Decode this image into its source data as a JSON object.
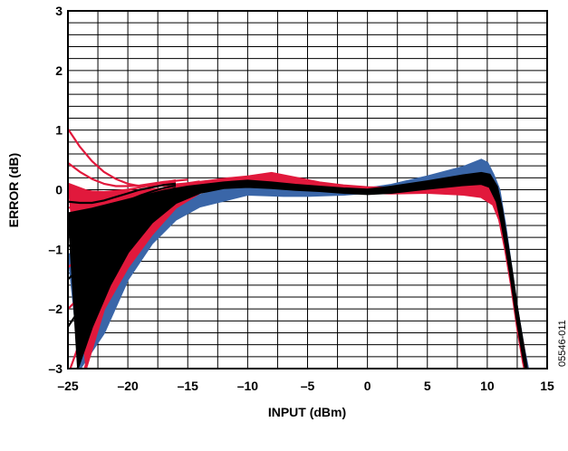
{
  "chart_data": {
    "type": "line",
    "title": "",
    "xlabel": "INPUT (dBm)",
    "ylabel": "ERROR (dB)",
    "xlim": [
      -25,
      15
    ],
    "ylim": [
      -3,
      3
    ],
    "x_ticks": [
      -25,
      -20,
      -15,
      -10,
      -5,
      0,
      5,
      10,
      15
    ],
    "x_tick_labels": [
      "–25",
      "–20",
      "–15",
      "–10",
      "–5",
      "0",
      "5",
      "10",
      "15"
    ],
    "y_ticks": [
      -3,
      -2,
      -1,
      0,
      1,
      2,
      3
    ],
    "y_tick_labels": [
      "–3",
      "–2",
      "–1",
      "0",
      "1",
      "2",
      "3"
    ],
    "grid": {
      "x_minor_step": 2.5,
      "y_minor_step": 0.2
    },
    "legend": "none",
    "figure_id": "05546-011",
    "series_groups": [
      {
        "color": "#3a66a8",
        "band_top": [
          [
            -25,
            -1.1
          ],
          [
            -22,
            -0.75
          ],
          [
            -20,
            -0.5
          ],
          [
            -18,
            -0.3
          ],
          [
            -15,
            -0.15
          ],
          [
            -12,
            0.02
          ],
          [
            -10,
            0.08
          ],
          [
            -7,
            0.05
          ],
          [
            -5,
            0.03
          ],
          [
            -2,
            0.02
          ],
          [
            0,
            0.02
          ],
          [
            2,
            0.08
          ],
          [
            5,
            0.22
          ],
          [
            8,
            0.38
          ],
          [
            9.5,
            0.5
          ],
          [
            10,
            0.45
          ],
          [
            10.5,
            0.25
          ],
          [
            11,
            0.0
          ],
          [
            11.5,
            -0.6
          ],
          [
            12,
            -1.3
          ],
          [
            12.5,
            -2.0
          ],
          [
            13,
            -2.6
          ],
          [
            13.4,
            -3.0
          ]
        ],
        "band_bottom": [
          [
            -24,
            -3.0
          ],
          [
            -22,
            -2.4
          ],
          [
            -20,
            -1.5
          ],
          [
            -18,
            -0.9
          ],
          [
            -16,
            -0.5
          ],
          [
            -14,
            -0.28
          ],
          [
            -12,
            -0.18
          ],
          [
            -10,
            -0.08
          ],
          [
            -7,
            -0.1
          ],
          [
            -5,
            -0.1
          ],
          [
            -2,
            -0.08
          ],
          [
            0,
            -0.05
          ],
          [
            2,
            0.0
          ],
          [
            5,
            0.05
          ],
          [
            8,
            0.08
          ],
          [
            9.5,
            0.08
          ],
          [
            10.5,
            -0.05
          ],
          [
            11,
            -0.3
          ],
          [
            11.5,
            -0.8
          ],
          [
            12,
            -1.5
          ],
          [
            12.5,
            -2.2
          ],
          [
            13,
            -2.8
          ],
          [
            13.1,
            -3.0
          ]
        ]
      },
      {
        "color": "#e1193c",
        "band_top": [
          [
            -25,
            0.1
          ],
          [
            -23,
            -0.05
          ],
          [
            -21,
            -0.05
          ],
          [
            -19,
            -0.02
          ],
          [
            -17,
            0.02
          ],
          [
            -15,
            0.1
          ],
          [
            -12,
            0.18
          ],
          [
            -10,
            0.22
          ],
          [
            -8,
            0.28
          ],
          [
            -6,
            0.2
          ],
          [
            -4,
            0.12
          ],
          [
            -2,
            0.07
          ],
          [
            0,
            0.04
          ],
          [
            2,
            0.03
          ],
          [
            5,
            0.04
          ],
          [
            8,
            0.1
          ],
          [
            9.5,
            0.15
          ],
          [
            10.5,
            0.05
          ],
          [
            11,
            -0.3
          ],
          [
            11.5,
            -0.8
          ],
          [
            12,
            -1.4
          ],
          [
            12.5,
            -2.1
          ],
          [
            13,
            -2.6
          ],
          [
            13.3,
            -3.0
          ]
        ],
        "band_bottom": [
          [
            -23.5,
            -3.0
          ],
          [
            -22,
            -2.0
          ],
          [
            -20,
            -1.3
          ],
          [
            -18,
            -0.75
          ],
          [
            -16,
            -0.3
          ],
          [
            -14,
            -0.05
          ],
          [
            -12,
            0.06
          ],
          [
            -10,
            0.12
          ],
          [
            -8,
            0.1
          ],
          [
            -6,
            0.06
          ],
          [
            -4,
            0.03
          ],
          [
            -2,
            -0.02
          ],
          [
            0,
            -0.05
          ],
          [
            2,
            -0.06
          ],
          [
            5,
            -0.05
          ],
          [
            8,
            -0.08
          ],
          [
            9.5,
            -0.12
          ],
          [
            10.5,
            -0.25
          ],
          [
            11,
            -0.5
          ],
          [
            11.5,
            -1.0
          ],
          [
            12,
            -1.6
          ],
          [
            12.5,
            -2.3
          ],
          [
            13,
            -2.9
          ],
          [
            13.1,
            -3.0
          ]
        ],
        "lines": [
          [
            [
              -25,
              1.02
            ],
            [
              -24,
              0.72
            ],
            [
              -23,
              0.48
            ],
            [
              -22,
              0.3
            ],
            [
              -21,
              0.18
            ],
            [
              -20,
              0.1
            ],
            [
              -19,
              0.06
            ],
            [
              -18,
              0.06
            ],
            [
              -17,
              0.07
            ],
            [
              -16,
              0.09
            ],
            [
              -15,
              0.11
            ],
            [
              -14,
              0.14
            ]
          ],
          [
            [
              -25,
              0.45
            ],
            [
              -24,
              0.3
            ],
            [
              -23,
              0.18
            ],
            [
              -22,
              0.1
            ],
            [
              -21,
              0.06
            ],
            [
              -20,
              0.06
            ],
            [
              -19,
              0.07
            ],
            [
              -18,
              0.1
            ],
            [
              -17,
              0.13
            ],
            [
              -16,
              0.15
            ],
            [
              -15,
              0.17
            ]
          ],
          [
            [
              -25,
              0.05
            ],
            [
              -24,
              0.0
            ],
            [
              -23,
              -0.03
            ],
            [
              -22,
              -0.04
            ],
            [
              -21,
              -0.02
            ],
            [
              -20,
              0.0
            ],
            [
              -19,
              0.04
            ],
            [
              -18,
              0.08
            ],
            [
              -17,
              0.12
            ],
            [
              -16,
              0.16
            ]
          ],
          [
            [
              -25,
              -0.3
            ],
            [
              -24,
              -0.3
            ],
            [
              -23,
              -0.28
            ],
            [
              -22,
              -0.22
            ],
            [
              -21,
              -0.15
            ],
            [
              -20,
              -0.08
            ],
            [
              -19,
              -0.02
            ],
            [
              -18,
              0.04
            ],
            [
              -17,
              0.09
            ],
            [
              -16,
              0.13
            ]
          ],
          [
            [
              -25,
              -0.7
            ],
            [
              -24,
              -0.65
            ],
            [
              -23,
              -0.55
            ],
            [
              -22,
              -0.45
            ],
            [
              -21,
              -0.35
            ],
            [
              -20,
              -0.25
            ],
            [
              -19,
              -0.15
            ],
            [
              -18,
              -0.06
            ],
            [
              -17,
              0.02
            ],
            [
              -16,
              0.08
            ]
          ],
          [
            [
              -25,
              -1.3
            ],
            [
              -24,
              -1.15
            ],
            [
              -23,
              -0.95
            ],
            [
              -22,
              -0.78
            ],
            [
              -21,
              -0.62
            ],
            [
              -20,
              -0.48
            ],
            [
              -19,
              -0.32
            ],
            [
              -18,
              -0.2
            ],
            [
              -17,
              -0.08
            ],
            [
              -16,
              0.02
            ]
          ],
          [
            [
              -25,
              -2.0
            ],
            [
              -24,
              -1.8
            ],
            [
              -23,
              -1.5
            ],
            [
              -22,
              -1.2
            ],
            [
              -21,
              -0.92
            ],
            [
              -20,
              -0.68
            ],
            [
              -19,
              -0.48
            ],
            [
              -18,
              -0.3
            ],
            [
              -17,
              -0.15
            ],
            [
              -16,
              -0.04
            ]
          ],
          [
            [
              -24.8,
              -3.0
            ],
            [
              -24,
              -2.55
            ],
            [
              -23,
              -2.05
            ],
            [
              -22,
              -1.6
            ],
            [
              -21,
              -1.2
            ],
            [
              -20,
              -0.88
            ],
            [
              -19,
              -0.6
            ],
            [
              -18,
              -0.38
            ],
            [
              -17,
              -0.2
            ],
            [
              -16,
              -0.08
            ]
          ],
          [
            [
              -23.6,
              -3.0
            ],
            [
              -23,
              -2.6
            ],
            [
              -22,
              -2.0
            ],
            [
              -21,
              -1.5
            ],
            [
              -20,
              -1.1
            ],
            [
              -19,
              -0.78
            ],
            [
              -18,
              -0.5
            ],
            [
              -17,
              -0.28
            ],
            [
              -16,
              -0.12
            ]
          ]
        ]
      },
      {
        "color": "#000000",
        "band_top": [
          [
            -25,
            -0.4
          ],
          [
            -23,
            -0.32
          ],
          [
            -21,
            -0.22
          ],
          [
            -19,
            -0.12
          ],
          [
            -17,
            -0.02
          ],
          [
            -15,
            0.05
          ],
          [
            -12,
            0.12
          ],
          [
            -10,
            0.15
          ],
          [
            -8,
            0.12
          ],
          [
            -6,
            0.08
          ],
          [
            -4,
            0.05
          ],
          [
            -2,
            0.02
          ],
          [
            0,
            0.0
          ],
          [
            2,
            0.05
          ],
          [
            5,
            0.14
          ],
          [
            8,
            0.24
          ],
          [
            9.5,
            0.28
          ],
          [
            10.2,
            0.25
          ],
          [
            10.8,
            0.05
          ],
          [
            11.2,
            -0.3
          ],
          [
            11.6,
            -0.8
          ],
          [
            12,
            -1.3
          ],
          [
            12.5,
            -2.0
          ],
          [
            13,
            -2.6
          ],
          [
            13.3,
            -3.0
          ]
        ],
        "band_bottom": [
          [
            -24.2,
            -3.0
          ],
          [
            -23,
            -2.3
          ],
          [
            -21.5,
            -1.6
          ],
          [
            -20,
            -1.05
          ],
          [
            -18,
            -0.55
          ],
          [
            -16,
            -0.22
          ],
          [
            -14,
            -0.05
          ],
          [
            -12,
            0.03
          ],
          [
            -10,
            0.05
          ],
          [
            -8,
            0.03
          ],
          [
            -6,
            0.0
          ],
          [
            -4,
            -0.02
          ],
          [
            -2,
            -0.05
          ],
          [
            0,
            -0.07
          ],
          [
            2,
            -0.05
          ],
          [
            5,
            0.02
          ],
          [
            8,
            0.08
          ],
          [
            9.5,
            0.1
          ],
          [
            10.2,
            0.05
          ],
          [
            10.8,
            -0.2
          ],
          [
            11.2,
            -0.55
          ],
          [
            11.6,
            -1.0
          ],
          [
            12,
            -1.5
          ],
          [
            12.5,
            -2.2
          ],
          [
            13,
            -2.8
          ],
          [
            13.2,
            -3.0
          ]
        ],
        "lines": [
          [
            [
              -25,
              -0.2
            ],
            [
              -24,
              -0.22
            ],
            [
              -23,
              -0.22
            ],
            [
              -22,
              -0.18
            ],
            [
              -21,
              -0.12
            ],
            [
              -20,
              -0.06
            ],
            [
              -19,
              0.0
            ],
            [
              -18,
              0.04
            ],
            [
              -17,
              0.08
            ],
            [
              -16,
              0.1
            ]
          ],
          [
            [
              -25,
              -0.55
            ],
            [
              -24,
              -0.5
            ],
            [
              -23,
              -0.42
            ],
            [
              -22,
              -0.34
            ],
            [
              -21,
              -0.26
            ],
            [
              -20,
              -0.18
            ],
            [
              -19,
              -0.1
            ],
            [
              -18,
              -0.03
            ],
            [
              -17,
              0.03
            ],
            [
              -16,
              0.07
            ]
          ],
          [
            [
              -25,
              -0.95
            ],
            [
              -24,
              -0.85
            ],
            [
              -23,
              -0.72
            ],
            [
              -22,
              -0.58
            ],
            [
              -21,
              -0.45
            ],
            [
              -20,
              -0.34
            ],
            [
              -19,
              -0.22
            ],
            [
              -18,
              -0.12
            ],
            [
              -17,
              -0.04
            ],
            [
              -16,
              0.03
            ]
          ],
          [
            [
              -25,
              -1.5
            ],
            [
              -24,
              -1.32
            ],
            [
              -23,
              -1.1
            ],
            [
              -22,
              -0.9
            ],
            [
              -21,
              -0.72
            ],
            [
              -20,
              -0.55
            ],
            [
              -19,
              -0.38
            ],
            [
              -18,
              -0.24
            ],
            [
              -17,
              -0.12
            ],
            [
              -16,
              -0.02
            ]
          ],
          [
            [
              -25,
              -2.3
            ],
            [
              -24,
              -2.0
            ],
            [
              -23,
              -1.65
            ],
            [
              -22,
              -1.33
            ],
            [
              -21,
              -1.03
            ],
            [
              -20,
              -0.78
            ],
            [
              -19,
              -0.55
            ],
            [
              -18,
              -0.35
            ],
            [
              -17,
              -0.18
            ],
            [
              -16,
              -0.06
            ]
          ]
        ]
      }
    ]
  }
}
